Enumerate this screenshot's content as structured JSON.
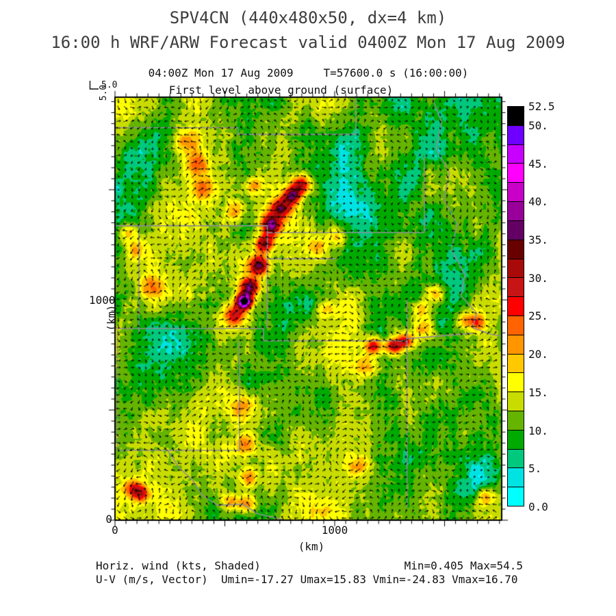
{
  "header": {
    "title": "SPV4CN (440x480x50, dx=4 km)",
    "subtitle": "16:00 h WRF/ARW Forecast valid 0400Z Mon 17 Aug 2009"
  },
  "plot": {
    "time_left": "04:00Z Mon 17 Aug 2009",
    "time_right": "T=57600.0 s (16:00:00)",
    "level_line": "First level above ground (surface)",
    "vector_key": {
      "vertical_value": "5.0",
      "horizontal_value": "5.0"
    },
    "x_axis": {
      "label": "(km)",
      "tick0": "0",
      "tick1000": "1000"
    },
    "y_axis": {
      "label": "(km)",
      "tick0": "0",
      "tick1000": "1000"
    }
  },
  "footer": {
    "line1_left": "Horiz. wind (kts, Shaded)",
    "line1_right": "Min=0.405 Max=54.5",
    "line2": "U-V (m/s, Vector)  Umin=-17.27 Umax=15.83 Vmin=-24.83 Vmax=16.70"
  },
  "chart_data": {
    "type": "heatmap",
    "title": "SPV4CN (440x480x50, dx=4 km)",
    "shaded_field": "Horizontal wind speed",
    "shaded_units": "kts",
    "vector_field": "U-V wind",
    "vector_units": "m/s",
    "vector_reference": 5.0,
    "valid_time": "0400Z Mon 17 Aug 2009",
    "forecast_hour": "16:00 h",
    "model_seconds": 57600.0,
    "level": "First level above ground (surface)",
    "grid": "440x480x50, dx=4 km",
    "x_range_km": [
      0,
      1760
    ],
    "y_range_km": [
      0,
      1920
    ],
    "x_ticks_labeled_km": [
      0,
      1000
    ],
    "y_ticks_labeled_km": [
      0,
      1000
    ],
    "minor_tick_km": 50,
    "stats": {
      "min": 0.405,
      "max": 54.5,
      "umin": -17.27,
      "umax": 15.83,
      "vmin": -24.83,
      "vmax": 16.7
    },
    "levels_kts": [
      0,
      2.5,
      5,
      7.5,
      10,
      12.5,
      15,
      17.5,
      20,
      22.5,
      25,
      27.5,
      30,
      32.5,
      35,
      37.5,
      40,
      42.5,
      45,
      47.5,
      50,
      52.5
    ],
    "palette": [
      "#00FFFF",
      "#00E3E3",
      "#00C87D",
      "#00AA00",
      "#64B400",
      "#C8DC00",
      "#FFFF00",
      "#FFC800",
      "#FF9600",
      "#FF6400",
      "#FF0000",
      "#C81414",
      "#A80A0A",
      "#690000",
      "#640064",
      "#990099",
      "#C800C8",
      "#FF00FF",
      "#C800FF",
      "#6E00FF",
      "#000000"
    ],
    "colorbar_labels": [
      {
        "text": "52.5",
        "value": 52.5
      },
      {
        "text": "50.",
        "value": 50
      },
      {
        "text": "45.",
        "value": 45
      },
      {
        "text": "40.",
        "value": 40
      },
      {
        "text": "35.",
        "value": 35
      },
      {
        "text": "30.",
        "value": 30
      },
      {
        "text": "25.",
        "value": 25
      },
      {
        "text": "20.",
        "value": 20
      },
      {
        "text": "15.",
        "value": 15
      },
      {
        "text": "10.",
        "value": 10
      },
      {
        "text": "5.",
        "value": 5
      },
      {
        "text": "0.0",
        "value": 0
      }
    ],
    "boundary_color": "#8f8f96",
    "vector_color": "#000000",
    "blobs": [
      [
        0.481,
        0.205,
        21,
        10
      ],
      [
        0.458,
        0.232,
        23,
        9
      ],
      [
        0.428,
        0.262,
        22,
        10
      ],
      [
        0.402,
        0.3,
        24,
        10
      ],
      [
        0.386,
        0.345,
        21,
        9
      ],
      [
        0.372,
        0.398,
        23,
        10
      ],
      [
        0.348,
        0.448,
        24,
        9
      ],
      [
        0.334,
        0.482,
        43,
        7.5
      ],
      [
        0.305,
        0.515,
        15,
        12
      ],
      [
        0.667,
        0.587,
        19,
        9
      ],
      [
        0.718,
        0.588,
        20,
        8
      ],
      [
        0.75,
        0.576,
        18,
        8
      ],
      [
        0.8,
        0.55,
        10,
        12
      ],
      [
        0.905,
        0.527,
        12,
        9
      ],
      [
        0.94,
        0.532,
        10,
        8
      ],
      [
        0.18,
        0.105,
        10,
        13
      ],
      [
        0.212,
        0.158,
        12,
        11
      ],
      [
        0.232,
        0.215,
        10,
        12
      ],
      [
        0.035,
        0.32,
        10,
        10
      ],
      [
        0.052,
        0.36,
        9,
        10
      ],
      [
        0.33,
        0.73,
        9,
        14
      ],
      [
        0.336,
        0.82,
        10,
        12
      ],
      [
        0.345,
        0.9,
        10,
        10
      ],
      [
        0.341,
        0.962,
        13,
        9
      ],
      [
        0.3,
        0.955,
        11,
        9
      ],
      [
        0.046,
        0.925,
        13,
        9
      ],
      [
        0.068,
        0.938,
        11,
        8
      ],
      [
        0.79,
        0.5,
        11,
        10
      ],
      [
        0.825,
        0.465,
        10,
        10
      ],
      [
        0.57,
        0.33,
        9,
        12
      ],
      [
        0.52,
        0.355,
        8,
        10
      ],
      [
        0.63,
        0.87,
        9,
        12
      ],
      [
        0.955,
        0.945,
        11,
        9
      ],
      [
        0.31,
        0.27,
        10,
        12
      ],
      [
        0.36,
        0.21,
        10,
        10
      ],
      [
        0.095,
        0.45,
        8,
        12
      ],
      [
        0.55,
        0.5,
        9,
        10
      ],
      [
        0.65,
        0.64,
        8,
        12
      ],
      [
        0.75,
        0.2,
        -6,
        48
      ],
      [
        0.62,
        0.29,
        -5,
        36
      ],
      [
        0.55,
        0.73,
        -5,
        32
      ],
      [
        0.17,
        0.55,
        -5,
        30
      ],
      [
        0.48,
        0.49,
        -4,
        26
      ],
      [
        0.93,
        0.9,
        -6,
        26
      ],
      [
        0.1,
        0.14,
        -3,
        26
      ],
      [
        0.55,
        0.12,
        -4,
        30
      ],
      [
        0.28,
        0.62,
        -4,
        26
      ],
      [
        0.87,
        0.12,
        -4,
        30
      ]
    ],
    "boundaries": [
      [
        [
          0,
          0.072
        ],
        [
          0.318,
          0.072
        ],
        [
          0.318,
          0.088
        ],
        [
          0.623,
          0.088
        ]
      ],
      [
        [
          0.623,
          0
        ],
        [
          0.623,
          0.088
        ]
      ],
      [
        [
          0,
          0.304
        ],
        [
          0.394,
          0.304
        ],
        [
          0.394,
          0.32
        ],
        [
          0.8,
          0.32
        ]
      ],
      [
        [
          0.062,
          0.304
        ],
        [
          0.062,
          0.56
        ]
      ],
      [
        [
          0.8,
          0.14
        ],
        [
          0.8,
          0.32
        ]
      ],
      [
        [
          0.394,
          0.32
        ],
        [
          0.394,
          0.547
        ]
      ],
      [
        [
          0,
          0.547
        ],
        [
          0.384,
          0.547
        ],
        [
          0.384,
          0.576
        ],
        [
          0.755,
          0.576
        ]
      ],
      [
        [
          0.755,
          0.48
        ],
        [
          0.755,
          0.97
        ]
      ],
      [
        [
          0.007,
          0.55
        ],
        [
          0.007,
          0.835
        ],
        [
          0.322,
          0.835
        ],
        [
          0.322,
          0.576
        ]
      ],
      [
        [
          0.136,
          0.835
        ],
        [
          0.165,
          0.875
        ],
        [
          0.2,
          0.905
        ],
        [
          0.225,
          0.94
        ],
        [
          0.265,
          0.965
        ],
        [
          0.33,
          0.962
        ],
        [
          0.37,
          0.985
        ],
        [
          0.44,
          1.0
        ]
      ],
      [
        [
          0.82,
          0
        ],
        [
          0.845,
          0.06
        ],
        [
          0.83,
          0.12
        ],
        [
          0.865,
          0.18
        ],
        [
          0.85,
          0.24
        ],
        [
          0.885,
          0.3
        ],
        [
          0.87,
          0.36
        ],
        [
          0.905,
          0.42
        ],
        [
          0.895,
          0.47
        ],
        [
          0.935,
          0.51
        ],
        [
          0.925,
          0.545
        ],
        [
          0.97,
          0.56
        ],
        [
          1.0,
          0.565
        ]
      ],
      [
        [
          0.755,
          0.571
        ],
        [
          0.925,
          0.558
        ]
      ],
      [
        [
          0.394,
          0.382
        ],
        [
          0.57,
          0.382
        ]
      ]
    ]
  }
}
